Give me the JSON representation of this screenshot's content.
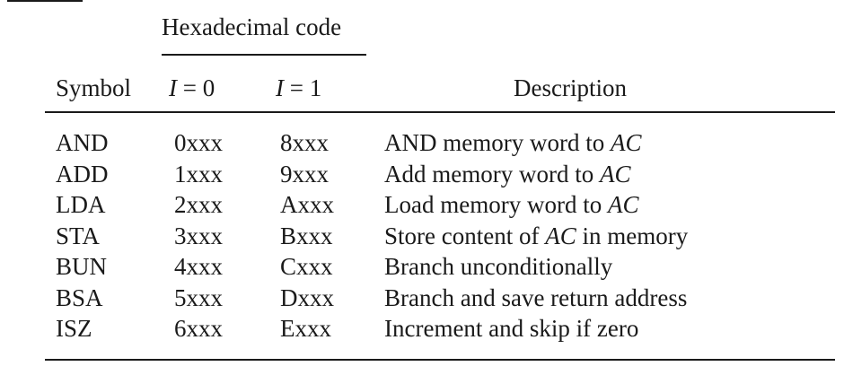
{
  "table": {
    "group_header": "Hexadecimal code",
    "headers": {
      "symbol": "Symbol",
      "i0_var": "I",
      "i0_rest": " = 0",
      "i1_var": "I",
      "i1_rest": " = 1",
      "description": "Description"
    },
    "rows": [
      {
        "symbol": "AND",
        "i0": "0xxx",
        "i1": "8xxx",
        "desc_a": "AND memory word to ",
        "desc_var": "AC",
        "desc_b": ""
      },
      {
        "symbol": "ADD",
        "i0": "1xxx",
        "i1": "9xxx",
        "desc_a": "Add memory word to ",
        "desc_var": "AC",
        "desc_b": ""
      },
      {
        "symbol": "LDA",
        "i0": "2xxx",
        "i1": "Axxx",
        "desc_a": "Load memory word to ",
        "desc_var": "AC",
        "desc_b": ""
      },
      {
        "symbol": "STA",
        "i0": "3xxx",
        "i1": "Bxxx",
        "desc_a": "Store content of ",
        "desc_var": "AC",
        "desc_b": " in memory"
      },
      {
        "symbol": "BUN",
        "i0": "4xxx",
        "i1": "Cxxx",
        "desc_a": "Branch unconditionally",
        "desc_var": "",
        "desc_b": ""
      },
      {
        "symbol": "BSA",
        "i0": "5xxx",
        "i1": "Dxxx",
        "desc_a": "Branch and save return address",
        "desc_var": "",
        "desc_b": ""
      },
      {
        "symbol": "ISZ",
        "i0": "6xxx",
        "i1": "Exxx",
        "desc_a": "Increment and skip if zero",
        "desc_var": "",
        "desc_b": ""
      }
    ]
  }
}
